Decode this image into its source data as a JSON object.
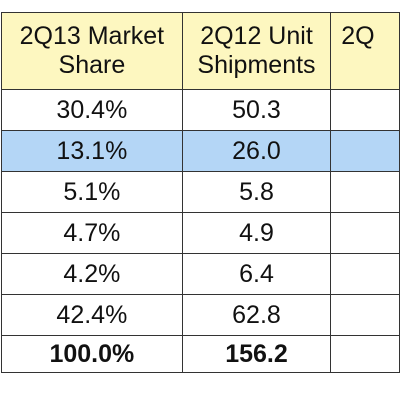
{
  "header": {
    "col1": "2Q13 Market\nShare",
    "col1_line1": "2Q13 Market",
    "col1_line2": "Share",
    "col2_line1": "2Q12 Unit",
    "col2_line2": "Shipments",
    "col3_partial": "2Q"
  },
  "rows": [
    {
      "share": "30.4%",
      "shipments": "50.3",
      "highlight": false
    },
    {
      "share": "13.1%",
      "shipments": "26.0",
      "highlight": true
    },
    {
      "share": "5.1%",
      "shipments": "5.8",
      "highlight": false
    },
    {
      "share": "4.7%",
      "shipments": "4.9",
      "highlight": false
    },
    {
      "share": "4.2%",
      "shipments": "6.4",
      "highlight": false
    },
    {
      "share": "42.4%",
      "shipments": "62.8",
      "highlight": false
    }
  ],
  "total": {
    "share": "100.0%",
    "shipments": "156.2"
  },
  "colors": {
    "header_bg": "#fdf7c0",
    "highlight_bg": "#b4d6f6",
    "border": "#333333"
  }
}
